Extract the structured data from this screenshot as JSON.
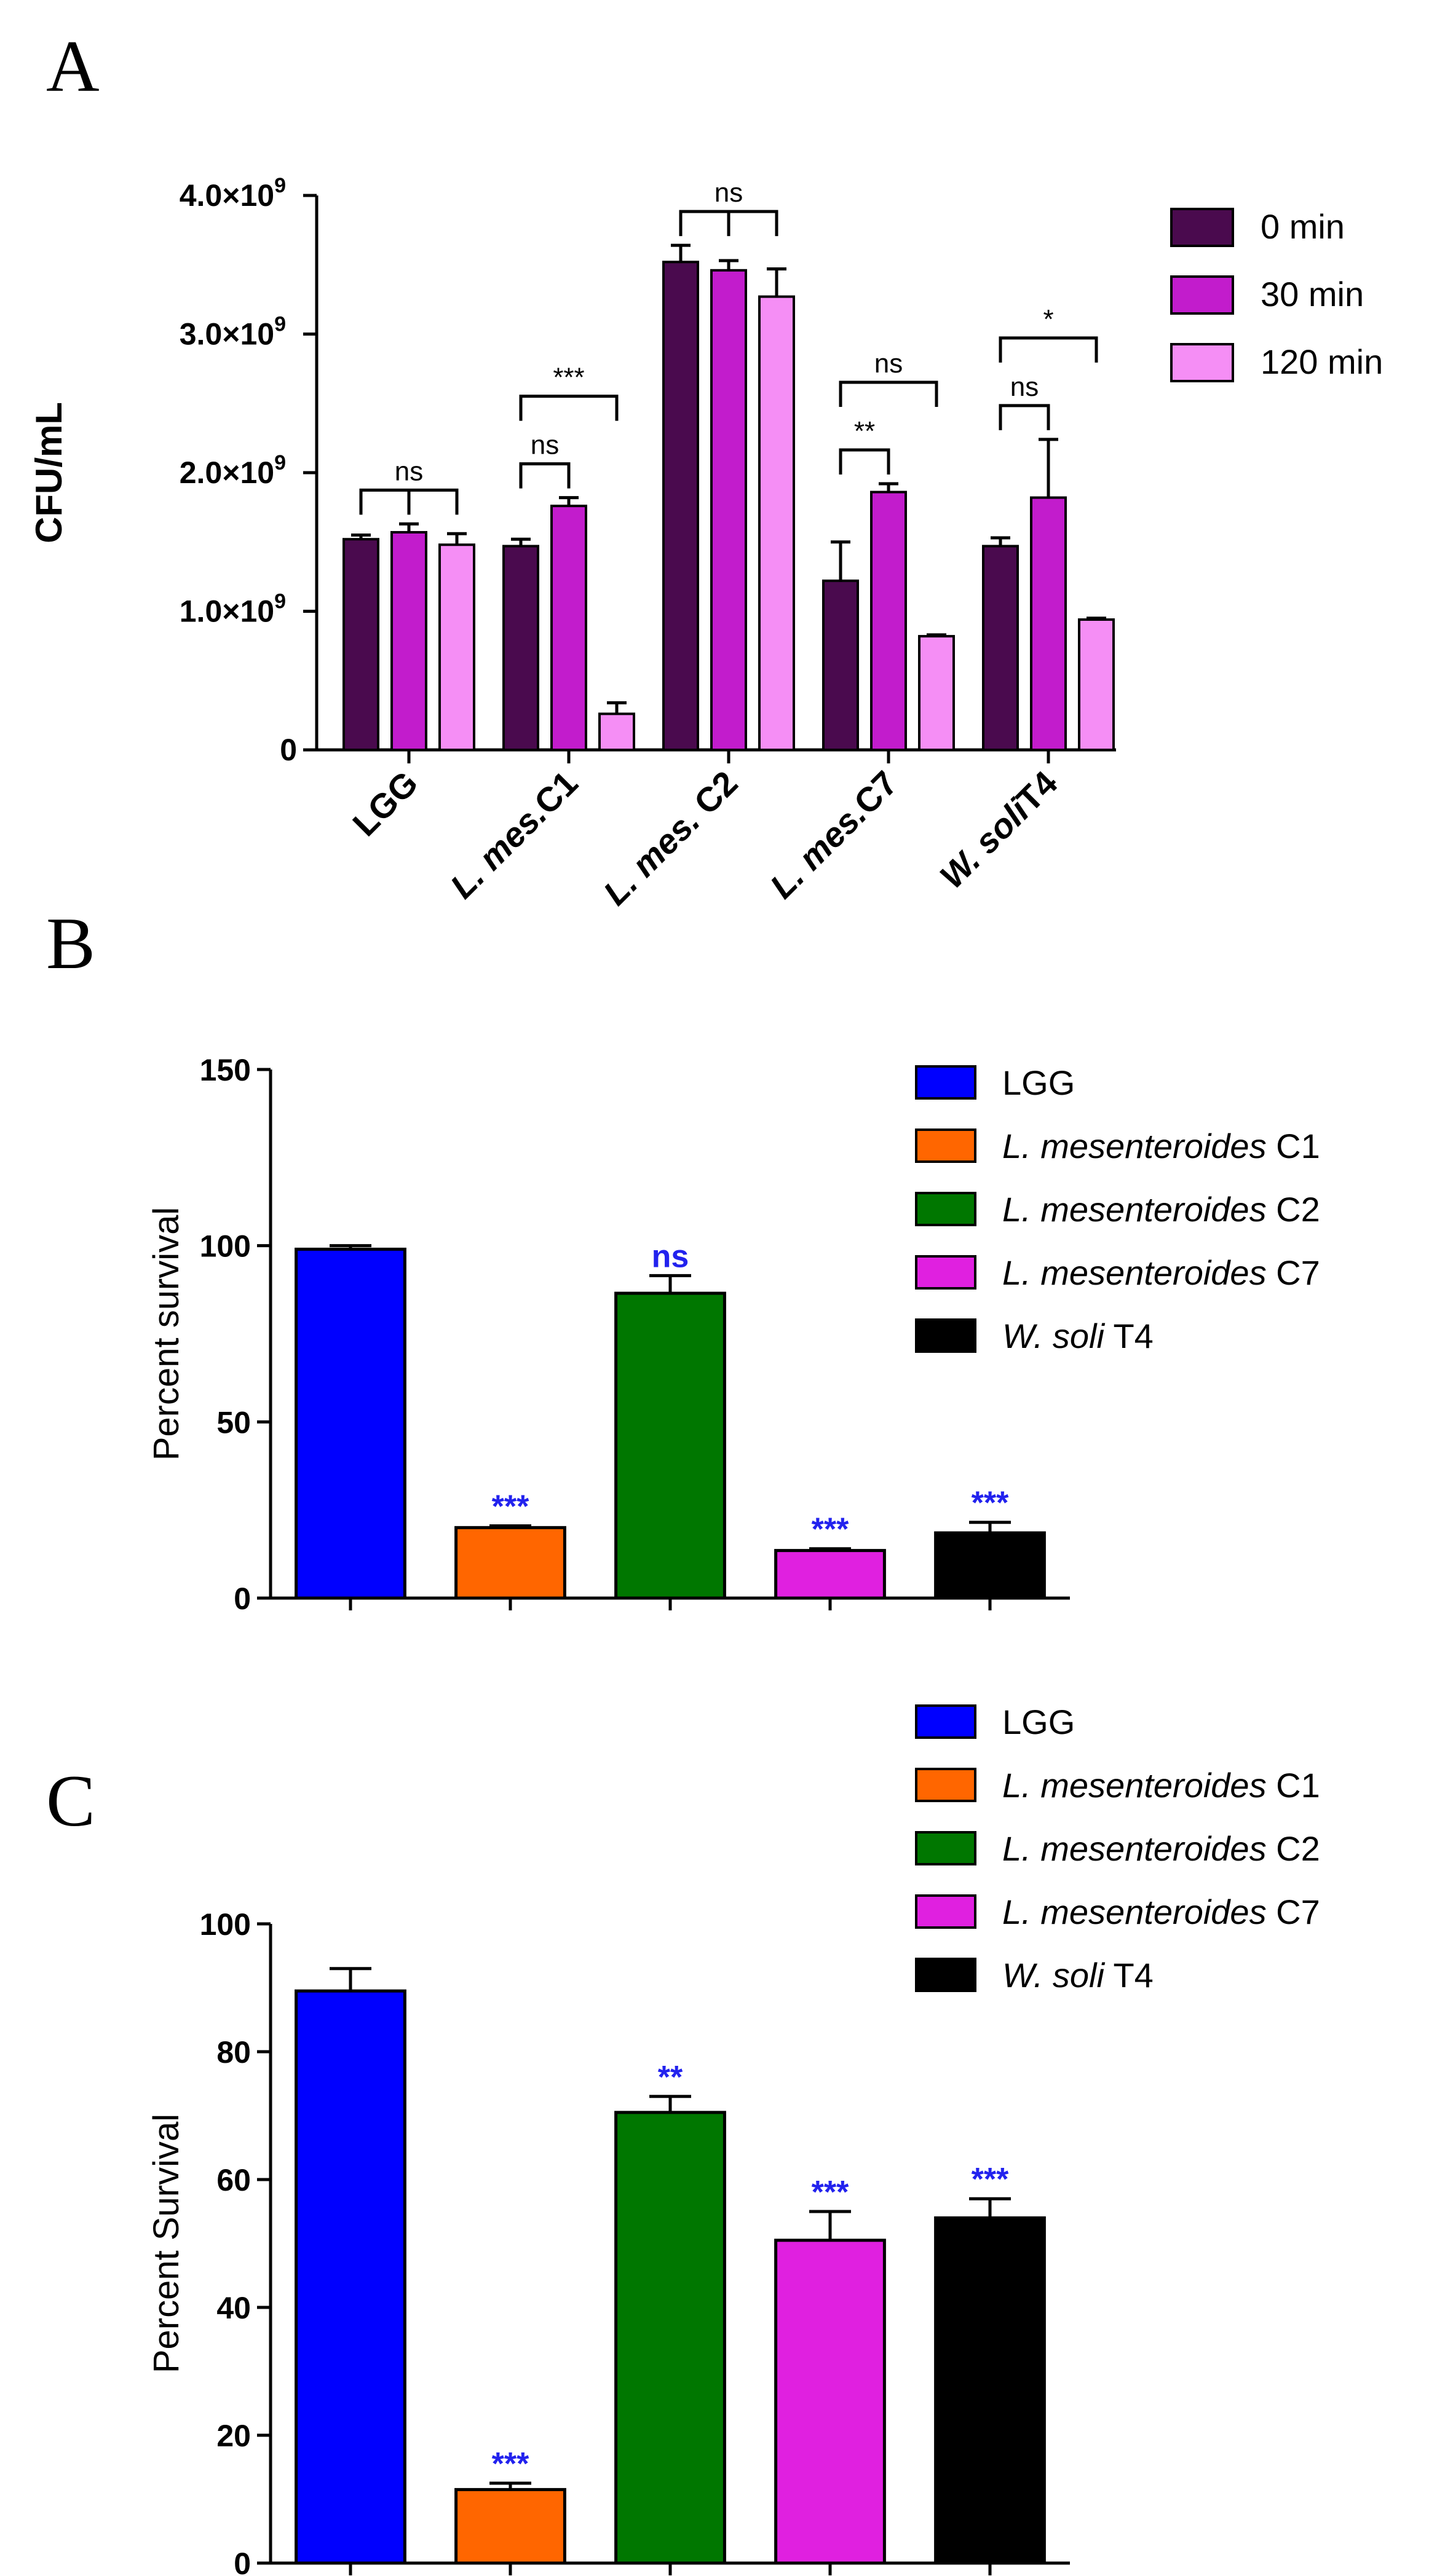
{
  "chart_data": [
    {
      "panel": "A",
      "type": "bar",
      "ylabel": "CFU/mL",
      "ylim": [
        0,
        4000000000.0
      ],
      "yticks": [
        {
          "value": 0,
          "mant": "0",
          "exp": ""
        },
        {
          "value": 1000000000.0,
          "mant": "1.0×10",
          "exp": "9"
        },
        {
          "value": 2000000000.0,
          "mant": "2.0×10",
          "exp": "9"
        },
        {
          "value": 3000000000.0,
          "mant": "3.0×10",
          "exp": "9"
        },
        {
          "value": 4000000000.0,
          "mant": "4.0×10",
          "exp": "9"
        }
      ],
      "categories": [
        "LGG",
        "L. mes.C1",
        "L. mes. C2",
        "L. mes.C7",
        "W. soliT4"
      ],
      "series": [
        {
          "name": "0 min",
          "color": "#4a0a4e",
          "values": [
            1520000000.0,
            1470000000.0,
            3520000000.0,
            1220000000.0,
            1470000000.0
          ],
          "errors": [
            30000000.0,
            50000000.0,
            120000000.0,
            280000000.0,
            60000000.0
          ]
        },
        {
          "name": "30 min",
          "color": "#c21ccc",
          "values": [
            1570000000.0,
            1760000000.0,
            3460000000.0,
            1860000000.0,
            1820000000.0
          ],
          "errors": [
            60000000.0,
            60000000.0,
            70000000.0,
            60000000.0,
            420000000.0
          ]
        },
        {
          "name": "120 min",
          "color": "#f58ef5",
          "values": [
            1480000000.0,
            260000000.0,
            3270000000.0,
            820000000.0,
            940000000.0
          ],
          "errors": [
            80000000.0,
            80000000.0,
            200000000.0,
            10000000.0,
            10000000.0
          ]
        }
      ],
      "significance": [
        {
          "category": 0,
          "from": 0,
          "to": 2,
          "label": "ns",
          "joint": true
        },
        {
          "category": 1,
          "from": 0,
          "to": 1,
          "label": "ns",
          "joint": false
        },
        {
          "category": 1,
          "from": 0,
          "to": 2,
          "label": "***",
          "joint": false
        },
        {
          "category": 2,
          "from": 0,
          "to": 2,
          "label": "ns",
          "joint": true
        },
        {
          "category": 3,
          "from": 0,
          "to": 1,
          "label": "**",
          "joint": false
        },
        {
          "category": 3,
          "from": 0,
          "to": 2,
          "label": "ns",
          "joint": false
        },
        {
          "category": 4,
          "from": 0,
          "to": 1,
          "label": "ns",
          "joint": false
        },
        {
          "category": 4,
          "from": 0,
          "to": 2,
          "label": "*",
          "joint": false
        }
      ],
      "legend_position": "top-right"
    },
    {
      "panel": "B",
      "type": "bar",
      "ylabel": "Percent survival",
      "ylim": [
        0,
        150
      ],
      "yticks": [
        0,
        50,
        100,
        150
      ],
      "categories": [
        "LGG",
        "L. mesenteroides C1",
        "L. mesenteroides C2",
        "L. mesenteroides C7",
        "W. soli T4"
      ],
      "values": [
        99,
        20,
        86.5,
        13.5,
        18.5
      ],
      "errors": [
        1,
        0.5,
        5,
        0.5,
        3
      ],
      "colors": [
        "#0000ff",
        "#ff6600",
        "#007700",
        "#e020e0",
        "#000000"
      ],
      "labels": [
        "",
        "***",
        "ns",
        "***",
        "***"
      ],
      "label_color": "#2222ee",
      "legend": [
        {
          "italic": "L",
          "rest": "LGG",
          "plain": true
        },
        {
          "italic": "L. mesenteroides",
          "rest": " C1"
        },
        {
          "italic": "L. mesenteroides",
          "rest": " C2"
        },
        {
          "italic": "L. mesenteroides",
          "rest": " C7"
        },
        {
          "italic": "W. soli",
          "rest": " T4"
        }
      ],
      "legend_position": "top-right"
    },
    {
      "panel": "C",
      "type": "bar",
      "ylabel": "Percent Survival",
      "ylim": [
        0,
        100
      ],
      "yticks": [
        0,
        20,
        40,
        60,
        80,
        100
      ],
      "categories": [
        "LGG",
        "L. mesenteroides C1",
        "L. mesenteroides C2",
        "L. mesenteroides C7",
        "W. soli T4"
      ],
      "values": [
        89.5,
        11.5,
        70.5,
        50.5,
        54
      ],
      "errors": [
        3.5,
        1,
        2.5,
        4.5,
        3
      ],
      "colors": [
        "#0000ff",
        "#ff6600",
        "#007700",
        "#e020e0",
        "#000000"
      ],
      "labels": [
        "",
        "***",
        "**",
        "***",
        "***"
      ],
      "label_color": "#2222ee",
      "legend": [
        {
          "italic": "L",
          "rest": "LGG",
          "plain": true
        },
        {
          "italic": "L. mesenteroides",
          "rest": " C1"
        },
        {
          "italic": "L. mesenteroides",
          "rest": " C2"
        },
        {
          "italic": "L. mesenteroides",
          "rest": " C7"
        },
        {
          "italic": "W. soli",
          "rest": " T4"
        }
      ],
      "legend_position": "top-right"
    }
  ],
  "panels": {
    "a": "A",
    "b": "B",
    "c": "C"
  },
  "legend_a": [
    "0 min",
    "30 min",
    "120 min"
  ],
  "legend_bc": [
    {
      "it": "",
      "rest": "LGG"
    },
    {
      "it": "L. mesenteroides",
      "rest": " C1"
    },
    {
      "it": "L. mesenteroides",
      "rest": " C2"
    },
    {
      "it": "L. mesenteroides",
      "rest": " C7"
    },
    {
      "it": "W. soli",
      "rest": " T4"
    }
  ]
}
